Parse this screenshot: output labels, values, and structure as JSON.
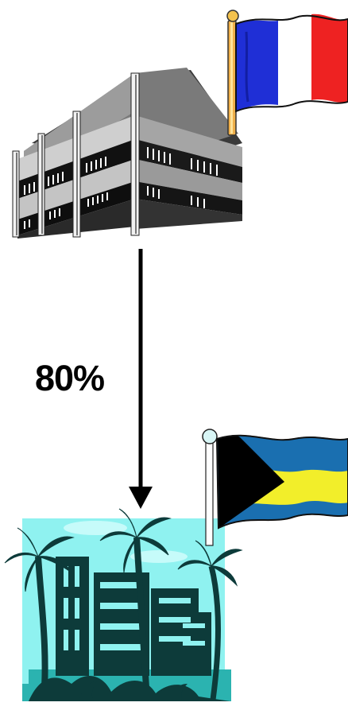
{
  "diagram": {
    "flow_percentage": "80%",
    "source": {
      "icon": "office-building-icon",
      "flag_icon": "france-flag-icon",
      "flag_colors": [
        "#1f2fd6",
        "#ffffff",
        "#ee2222"
      ]
    },
    "destination": {
      "icon": "tropical-resort-icon",
      "flag_icon": "bahamas-flag-icon",
      "flag_colors": [
        "#1a6fb0",
        "#f2ee2a",
        "#000000"
      ]
    },
    "arrow_color": "#000000",
    "resort_colors": {
      "background": "#8ff2f0",
      "foreground": "#0d3b3a"
    }
  }
}
